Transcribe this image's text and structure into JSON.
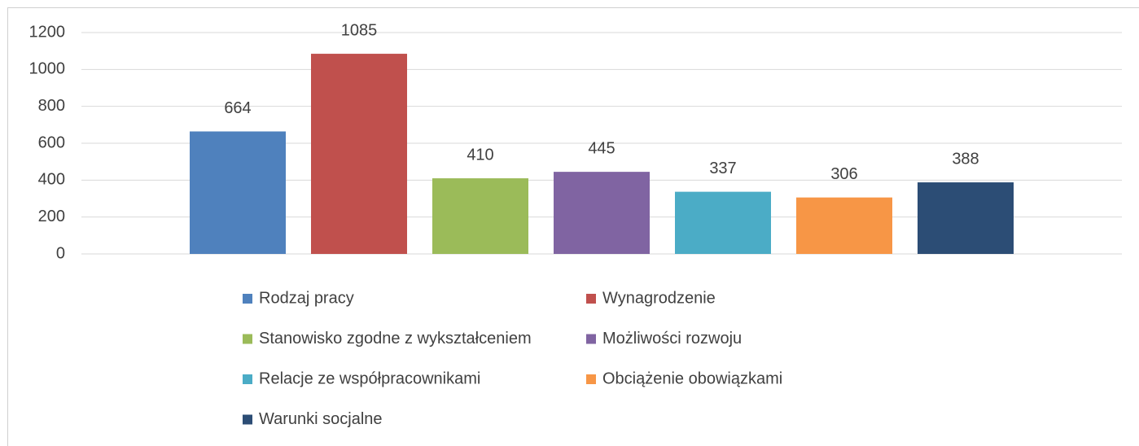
{
  "chart_data": {
    "type": "bar",
    "categories": [
      null
    ],
    "series": [
      {
        "name": "Rodzaj pracy",
        "color": "#4f81bd",
        "values": [
          664
        ]
      },
      {
        "name": "Wynagrodzenie",
        "color": "#c0504d",
        "values": [
          1085
        ]
      },
      {
        "name": "Stanowisko zgodne z wykształceniem",
        "color": "#9bbb59",
        "values": [
          410
        ]
      },
      {
        "name": "Możliwości rozwoju",
        "color": "#8064a2",
        "values": [
          445
        ]
      },
      {
        "name": "Relacje ze współpracownikami",
        "color": "#4bacc6",
        "values": [
          337
        ]
      },
      {
        "name": "Obciążenie obowiązkami",
        "color": "#f79646",
        "values": [
          306
        ]
      },
      {
        "name": "Warunki socjalne",
        "color": "#2c4d75",
        "values": [
          388
        ]
      }
    ],
    "ylim": [
      0,
      1200
    ],
    "yticks": [
      0,
      200,
      400,
      600,
      800,
      1000,
      1200
    ],
    "grid": true,
    "legend": "bottom"
  }
}
